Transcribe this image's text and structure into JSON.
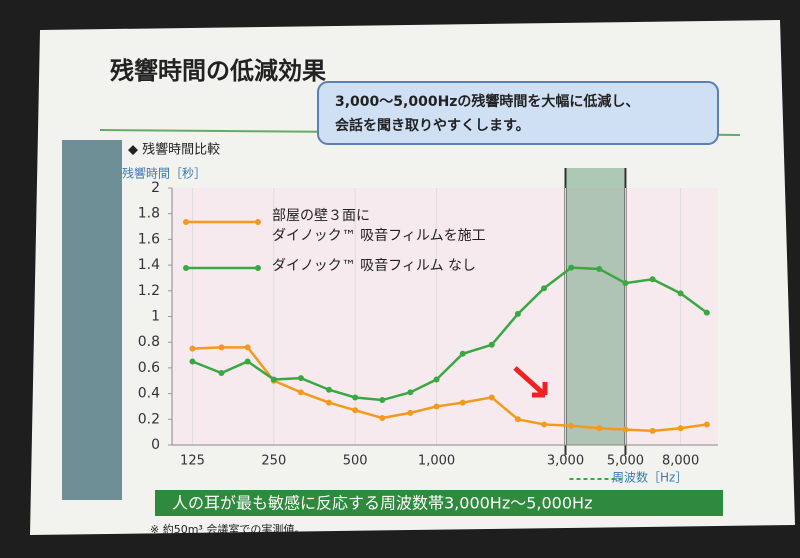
{
  "slide_title": "残響時間の低減効果",
  "callout": [
    "3,000〜5,000Hzの残響時間を大幅に低減し、",
    "会話を聞き取りやすくします。"
  ],
  "section": "◆ 残響時間比較",
  "banner": "人の耳が最も敏感に反応する周波数帯3,000Hz〜5,000Hz",
  "footnote": "※ 約50m³ 会議室での実測値。",
  "chart_data": {
    "type": "line",
    "y_label": "残響時間［秒］",
    "x_label": "周波数［Hz］",
    "log_x": true,
    "x": [
      125,
      160,
      200,
      250,
      315,
      400,
      500,
      630,
      800,
      1000,
      1250,
      1600,
      2000,
      2500,
      3150,
      4000,
      5000,
      6300,
      8000,
      10000
    ],
    "series": [
      {
        "name": "部屋の壁３面に\nダイノック™ 吸音フィルムを施工",
        "color": "#f39a1e",
        "values": [
          0.75,
          0.76,
          0.76,
          0.5,
          0.41,
          0.33,
          0.27,
          0.21,
          0.25,
          0.3,
          0.33,
          0.37,
          0.2,
          0.16,
          0.15,
          0.13,
          0.12,
          0.11,
          0.13,
          0.16
        ]
      },
      {
        "name": "ダイノック™ 吸音フィルム なし",
        "color": "#3aa842",
        "values": [
          0.65,
          0.56,
          0.65,
          0.51,
          0.52,
          0.43,
          0.37,
          0.35,
          0.41,
          0.51,
          0.71,
          0.78,
          1.02,
          1.22,
          1.38,
          1.37,
          1.26,
          1.29,
          1.18,
          1.03
        ]
      }
    ],
    "xlim": [
      105,
      11000
    ],
    "ylim": [
      0,
      2
    ],
    "xticks": [
      125,
      250,
      500,
      {
        "value": 1000,
        "label": "1,000"
      },
      {
        "value": 3000,
        "label": "3,000"
      },
      {
        "value": 5000,
        "label": "5,000"
      },
      {
        "value": 8000,
        "label": "8,000"
      }
    ],
    "yticks": [
      0,
      0.2,
      0.4,
      0.6,
      0.8,
      1,
      1.2,
      1.4,
      1.6,
      1.8,
      2
    ],
    "highlight": [
      3000,
      5000
    ],
    "grid": true
  }
}
